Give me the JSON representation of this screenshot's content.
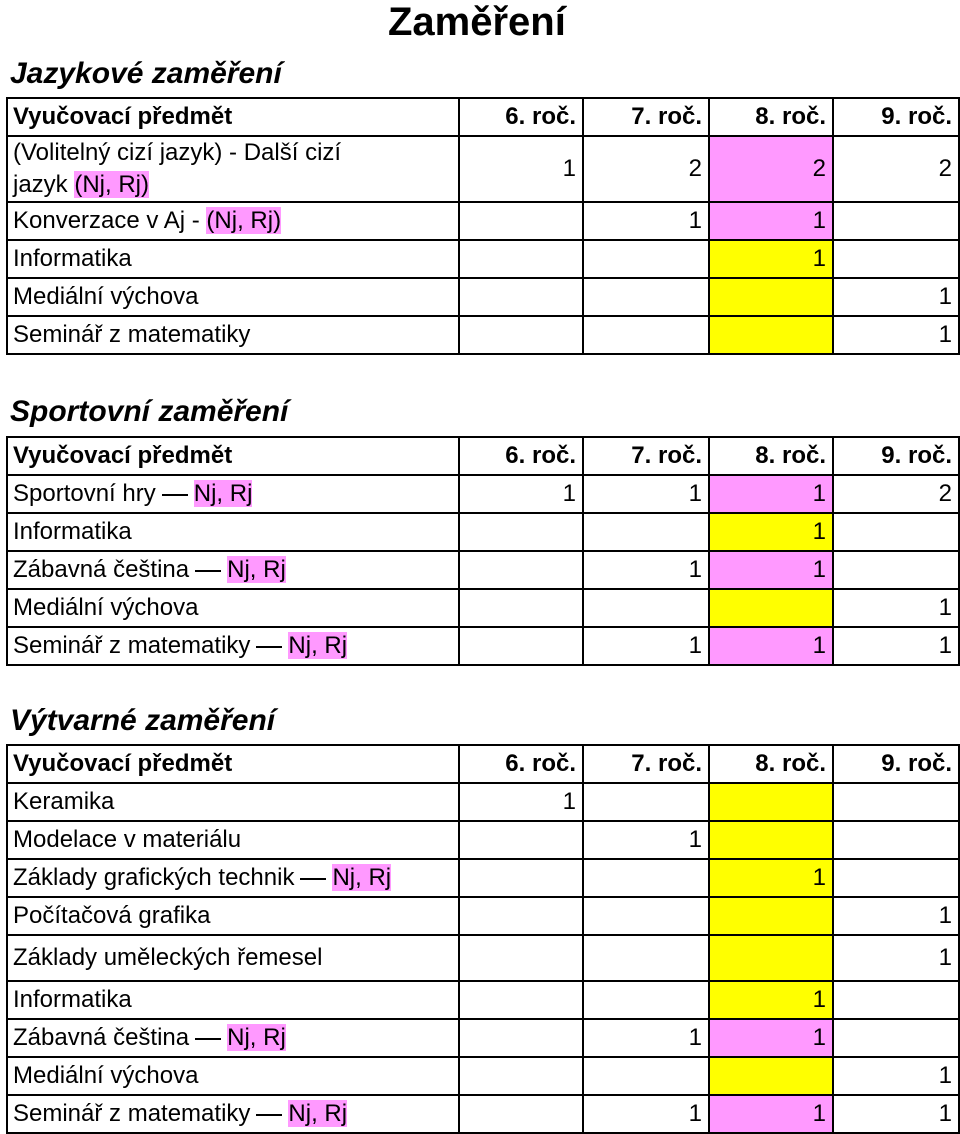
{
  "page": {
    "title": "Zaměření"
  },
  "colors": {
    "pink": "#ff99ff",
    "yellow": "#ffff00"
  },
  "header": {
    "subject": "Vyučovací předmět",
    "g6": "6. roč.",
    "g7": "7. roč.",
    "g8": "8. roč.",
    "g9": "9. roč."
  },
  "jazykove": {
    "title": "Jazykové zaměření",
    "rows": [
      {
        "name_line1": "(Volitelný cizí jazyk) - Další cizí",
        "name_line2": "jazyk ",
        "mark": "(Nj, Rj)",
        "g6": "1",
        "g7": "2",
        "g8": "2",
        "g9": "2"
      },
      {
        "name": "Konverzace v Aj - ",
        "mark": "(Nj, Rj)",
        "g6": "",
        "g7": "1",
        "g8": "1",
        "g9": ""
      },
      {
        "name": "Informatika",
        "g6": "",
        "g7": "",
        "g8": "1",
        "g9": ""
      },
      {
        "name": "Mediální výchova",
        "g6": "",
        "g7": "",
        "g8": "",
        "g9": "1"
      },
      {
        "name": "Seminář z matematiky",
        "g6": "",
        "g7": "",
        "g8": "",
        "g9": "1"
      }
    ]
  },
  "sportovni": {
    "title": "Sportovní zaměření",
    "rows": [
      {
        "name": "Sportovní hry",
        "mark": "Nj, Rj",
        "g6": "1",
        "g7": "1",
        "g8": "1",
        "g9": "2"
      },
      {
        "name": "Informatika",
        "g6": "",
        "g7": "",
        "g8": "1",
        "g9": ""
      },
      {
        "name": "Zábavná čeština",
        "mark": "Nj, Rj",
        "g6": "",
        "g7": "1",
        "g8": "1",
        "g9": ""
      },
      {
        "name": "Mediální výchova",
        "g6": "",
        "g7": "",
        "g8": "",
        "g9": "1"
      },
      {
        "name": "Seminář z matematiky",
        "mark": "Nj, Rj",
        "g6": "",
        "g7": "1",
        "g8": "1",
        "g9": "1"
      }
    ]
  },
  "vytvarne": {
    "title": "Výtvarné zaměření",
    "rows": [
      {
        "name": "Keramika",
        "g6": "1",
        "g7": "",
        "g8": "",
        "g9": ""
      },
      {
        "name": "Modelace v materiálu",
        "g6": "",
        "g7": "1",
        "g8": "",
        "g9": ""
      },
      {
        "name": "Základy grafických technik",
        "mark": "Nj, Rj",
        "g6": "",
        "g7": "",
        "g8": "1",
        "g9": ""
      },
      {
        "name": "Počítačová grafika",
        "g6": "",
        "g7": "",
        "g8": "",
        "g9": "1"
      },
      {
        "name": "Základy uměleckých řemesel",
        "g6": "",
        "g7": "",
        "g8": "",
        "g9": "1"
      },
      {
        "name": "Informatika",
        "g6": "",
        "g7": "",
        "g8": "1",
        "g9": ""
      },
      {
        "name": "Zábavná čeština",
        "mark": "Nj, Rj",
        "g6": "",
        "g7": "1",
        "g8": "1",
        "g9": ""
      },
      {
        "name": "Mediální výchova",
        "g6": "",
        "g7": "",
        "g8": "",
        "g9": "1"
      },
      {
        "name": "Seminář z matematiky",
        "mark": "Nj, Rj",
        "g6": "",
        "g7": "1",
        "g8": "1",
        "g9": "1"
      }
    ]
  }
}
